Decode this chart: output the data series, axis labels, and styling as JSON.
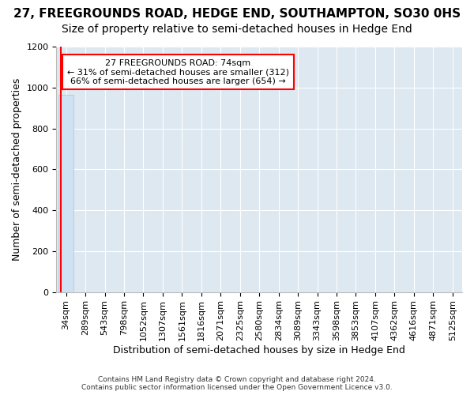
{
  "title": "27, FREEGROUNDS ROAD, HEDGE END, SOUTHAMPTON, SO30 0HS",
  "subtitle": "Size of property relative to semi-detached houses in Hedge End",
  "xlabel": "Distribution of semi-detached houses by size in Hedge End",
  "ylabel": "Number of semi-detached properties",
  "bar_color": "#cfe2f3",
  "bar_edge_color": "#aac4de",
  "bins": [
    "34sqm",
    "289sqm",
    "543sqm",
    "798sqm",
    "1052sqm",
    "1307sqm",
    "1561sqm",
    "1816sqm",
    "2071sqm",
    "2325sqm",
    "2580sqm",
    "2834sqm",
    "3089sqm",
    "3343sqm",
    "3598sqm",
    "3853sqm",
    "4107sqm",
    "4362sqm",
    "4616sqm",
    "4871sqm",
    "5125sqm"
  ],
  "values": [
    966,
    0,
    0,
    0,
    0,
    0,
    0,
    0,
    0,
    0,
    0,
    0,
    0,
    0,
    0,
    0,
    0,
    0,
    0,
    0,
    0
  ],
  "ylim": [
    0,
    1200
  ],
  "yticks": [
    0,
    200,
    400,
    600,
    800,
    1000,
    1200
  ],
  "annotation_text_line1": "27 FREEGROUNDS ROAD: 74sqm",
  "annotation_text_line2": "← 31% of semi-detached houses are smaller (312)",
  "annotation_text_line3": "66% of semi-detached houses are larger (654) →",
  "background_color": "#dde8f0",
  "grid_color": "#ffffff",
  "footer": "Contains HM Land Registry data © Crown copyright and database right 2024.\nContains public sector information licensed under the Open Government Licence v3.0.",
  "title_fontsize": 11,
  "subtitle_fontsize": 10,
  "axis_label_fontsize": 9,
  "tick_fontsize": 8
}
